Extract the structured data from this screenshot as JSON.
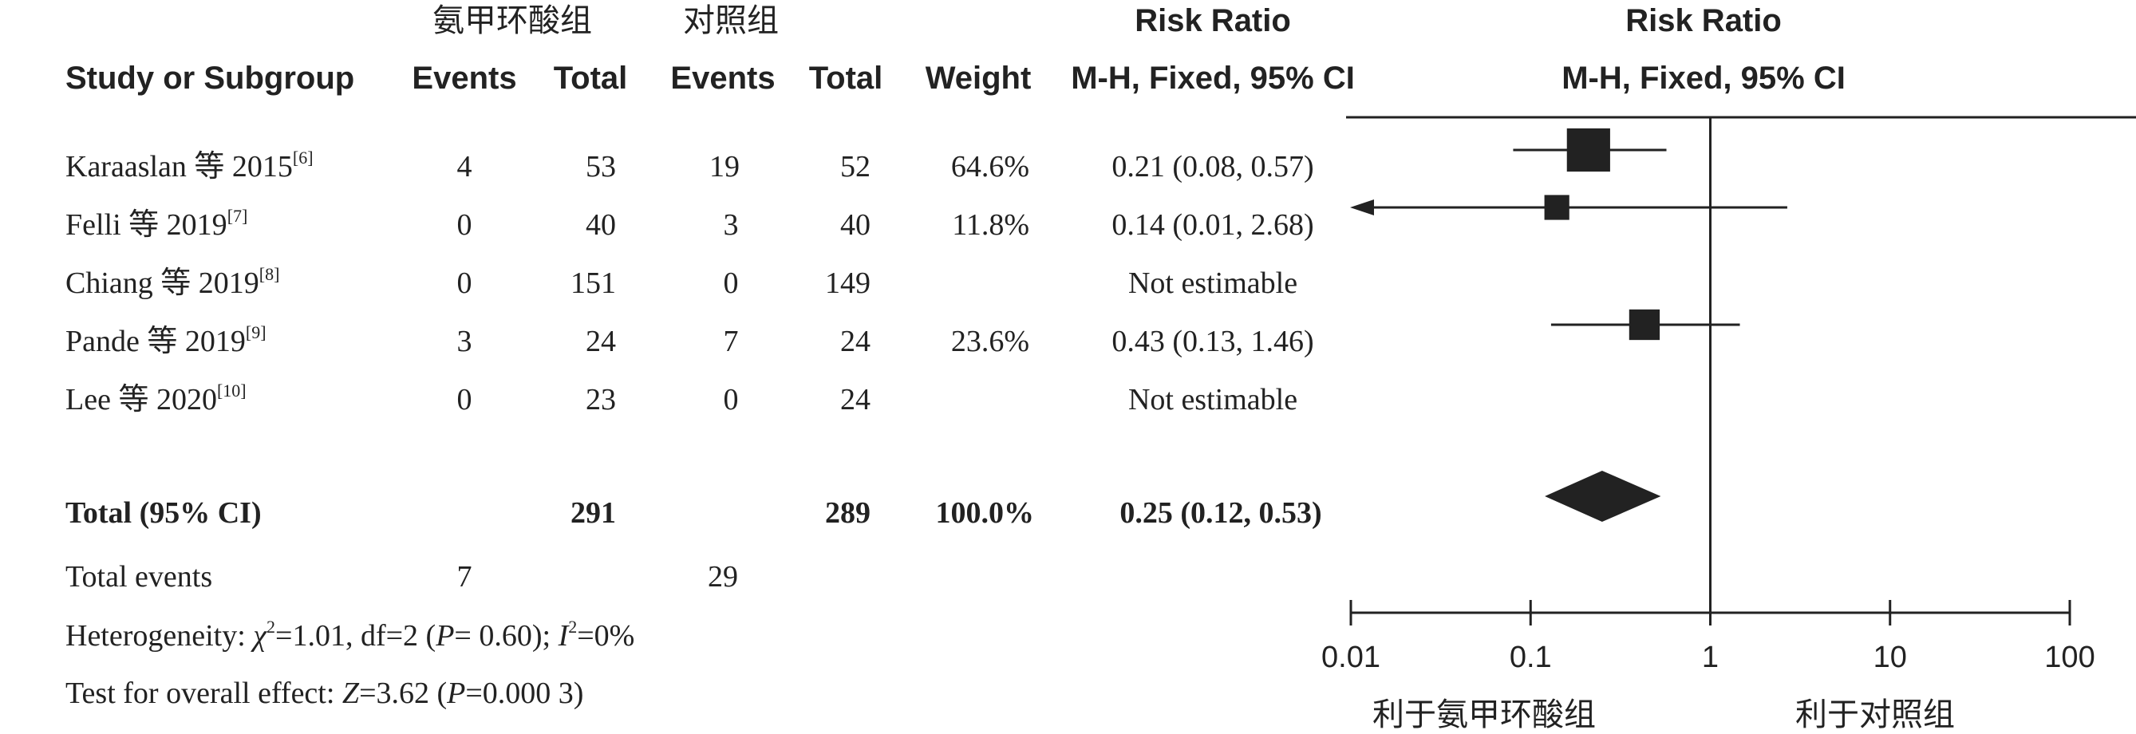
{
  "headers": {
    "group1": "氨甲环酸组",
    "group2": "对照组",
    "study": "Study or Subgroup",
    "events": "Events",
    "total": "Total",
    "weight": "Weight",
    "rr_title": "Risk Ratio",
    "rr_method": "M-H, Fixed, 95% CI",
    "plot_title": "Risk Ratio",
    "plot_method": "M-H, Fixed, 95% CI"
  },
  "studies": [
    {
      "name": "Karaaslan 等 2015",
      "ref": "[6]",
      "e1": "4",
      "t1": "53",
      "e2": "19",
      "t2": "52",
      "weight": "64.6%",
      "ci_text": "0.21 (0.08, 0.57)"
    },
    {
      "name": "Felli 等 2019",
      "ref": "[7]",
      "e1": "0",
      "t1": "40",
      "e2": "3",
      "t2": "40",
      "weight": "11.8%",
      "ci_text": "0.14 (0.01, 2.68)"
    },
    {
      "name": "Chiang 等 2019",
      "ref": "[8]",
      "e1": "0",
      "t1": "151",
      "e2": "0",
      "t2": "149",
      "weight": "",
      "ci_text": "Not estimable"
    },
    {
      "name": "Pande 等 2019",
      "ref": "[9]",
      "e1": "3",
      "t1": "24",
      "e2": "7",
      "t2": "24",
      "weight": "23.6%",
      "ci_text": "0.43 (0.13, 1.46)"
    },
    {
      "name": "Lee 等 2020",
      "ref": "[10]",
      "e1": "0",
      "t1": "23",
      "e2": "0",
      "t2": "24",
      "weight": "",
      "ci_text": "Not estimable"
    }
  ],
  "total": {
    "label": "Total (95% CI)",
    "t1": "291",
    "t2": "289",
    "weight": "100.0%",
    "ci_text": "0.25 (0.12, 0.53)"
  },
  "total_events": {
    "label": "Total events",
    "e1": "7",
    "e2": "29"
  },
  "heterogeneity": {
    "prefix": "Heterogeneity: ",
    "chi": "χ",
    "chi_rest": "=1.01, df=2 (",
    "p": "P",
    "p_rest": "= 0.60); ",
    "i": "I",
    "i_rest": "=0%"
  },
  "overall": {
    "prefix": "Test for overall effect: ",
    "z": "Z",
    "z_rest": "=3.62 (",
    "p": "P",
    "p_rest": "=0.000 3)"
  },
  "favours": {
    "left": "利于氨甲环酸组",
    "right": "利于对照组"
  },
  "chart_data": {
    "type": "forest",
    "scale": "log",
    "xlim": [
      0.01,
      100
    ],
    "ticks": [
      0.01,
      0.1,
      1,
      10,
      100
    ],
    "tick_labels": [
      "0.01",
      "0.1",
      "1",
      "10",
      "100"
    ],
    "reference_line": 1,
    "studies": [
      {
        "name": "Karaaslan 等 2015",
        "rr": 0.21,
        "lower": 0.08,
        "upper": 0.57,
        "weight": 64.6
      },
      {
        "name": "Felli 等 2019",
        "rr": 0.14,
        "lower": 0.01,
        "upper": 2.68,
        "weight": 11.8
      },
      {
        "name": "Chiang 等 2019",
        "rr": null,
        "lower": null,
        "upper": null,
        "weight": null
      },
      {
        "name": "Pande 等 2019",
        "rr": 0.43,
        "lower": 0.13,
        "upper": 1.46,
        "weight": 23.6
      },
      {
        "name": "Lee 等 2020",
        "rr": null,
        "lower": null,
        "upper": null,
        "weight": null
      }
    ],
    "pooled": {
      "rr": 0.25,
      "lower": 0.12,
      "upper": 0.53
    },
    "colors": {
      "marker": "#222222",
      "line": "#222222"
    }
  }
}
